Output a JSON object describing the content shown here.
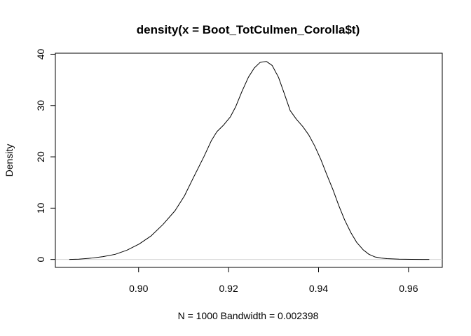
{
  "chart_data": {
    "type": "line",
    "title": "density(x = Boot_TotCulmen_Corolla$t)",
    "xlabel": "N = 1000   Bandwidth = 0.002398",
    "ylabel": "Density",
    "xlim": [
      0.8815,
      0.9675
    ],
    "ylim": [
      -1.55,
      40.2
    ],
    "x_ticks": [
      "0.90",
      "0.92",
      "0.94",
      "0.96"
    ],
    "y_ticks": [
      "0",
      "10",
      "20",
      "30",
      "40"
    ],
    "grid": false,
    "zero_line": true,
    "series": [
      {
        "color": "#000000",
        "x": [
          0.8846,
          0.8867,
          0.8894,
          0.8921,
          0.8948,
          0.8974,
          0.9001,
          0.9028,
          0.9054,
          0.9081,
          0.9102,
          0.9121,
          0.9145,
          0.9162,
          0.9174,
          0.9189,
          0.9204,
          0.9216,
          0.923,
          0.9244,
          0.9257,
          0.927,
          0.9284,
          0.9297,
          0.9311,
          0.9324,
          0.9337,
          0.9351,
          0.9365,
          0.9378,
          0.9391,
          0.9405,
          0.9418,
          0.9432,
          0.9445,
          0.9458,
          0.9472,
          0.9485,
          0.9499,
          0.9512,
          0.9525,
          0.9539,
          0.9552,
          0.9579,
          0.9606,
          0.9632,
          0.9646
        ],
        "y": [
          0.0,
          0.05,
          0.25,
          0.55,
          1.0,
          1.8,
          3.0,
          4.6,
          6.8,
          9.5,
          12.4,
          15.8,
          20.0,
          23.2,
          24.9,
          26.2,
          27.8,
          29.8,
          32.8,
          35.5,
          37.3,
          38.4,
          38.6,
          37.8,
          35.5,
          32.3,
          29.0,
          27.3,
          25.9,
          24.3,
          22.2,
          19.5,
          16.6,
          13.6,
          10.5,
          7.7,
          5.2,
          3.3,
          1.9,
          1.0,
          0.5,
          0.28,
          0.16,
          0.06,
          0.02,
          0.005,
          0.0
        ]
      }
    ]
  }
}
